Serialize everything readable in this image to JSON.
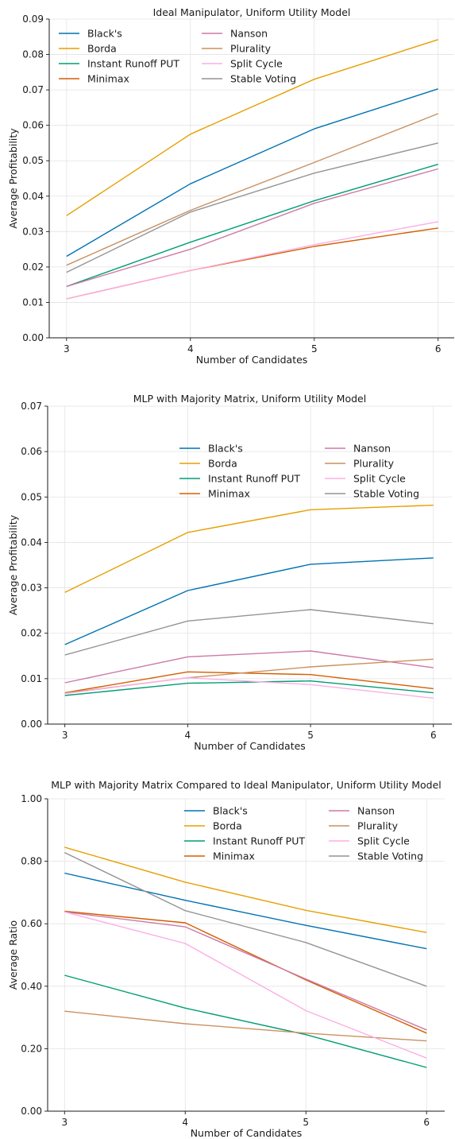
{
  "chart_data": [
    {
      "type": "line",
      "title": "Ideal Manipulator, Uniform Utility Model",
      "xlabel": "Number of Candidates",
      "ylabel": "Average Profitability",
      "x": [
        3,
        4,
        5,
        6
      ],
      "xlim": [
        2.86,
        6.13
      ],
      "ylim": [
        0,
        0.09
      ],
      "yticks": [
        0,
        0.01,
        0.02,
        0.03,
        0.04,
        0.05,
        0.06,
        0.07,
        0.08,
        0.09
      ],
      "ytick_labels": [
        "0.00",
        "0.01",
        "0.02",
        "0.03",
        "0.04",
        "0.05",
        "0.06",
        "0.07",
        "0.08",
        "0.09"
      ],
      "grid": true,
      "legend_position": "top-left",
      "series": [
        {
          "name": "Black's",
          "color": "#0072b2",
          "values": [
            0.023,
            0.0435,
            0.059,
            0.0703
          ]
        },
        {
          "name": "Borda",
          "color": "#e69f00",
          "values": [
            0.0345,
            0.0575,
            0.073,
            0.0842
          ]
        },
        {
          "name": "Instant Runoff PUT",
          "color": "#009e73",
          "values": [
            0.0145,
            0.027,
            0.0387,
            0.049
          ]
        },
        {
          "name": "Minimax",
          "color": "#d55e00",
          "values": [
            0.011,
            0.019,
            0.0258,
            0.031
          ]
        },
        {
          "name": "Nanson",
          "color": "#cc79a7",
          "values": [
            0.0145,
            0.025,
            0.038,
            0.0477
          ]
        },
        {
          "name": "Plurality",
          "color": "#ca9161",
          "values": [
            0.0205,
            0.036,
            0.0495,
            0.0633
          ]
        },
        {
          "name": "Split Cycle",
          "color": "#fbafe4",
          "values": [
            0.011,
            0.019,
            0.0263,
            0.0328
          ]
        },
        {
          "name": "Stable Voting",
          "color": "#949494",
          "values": [
            0.0185,
            0.0355,
            0.0465,
            0.055
          ]
        }
      ]
    },
    {
      "type": "line",
      "title": "MLP with Majority Matrix, Uniform Utility Model",
      "xlabel": "Number of Candidates",
      "ylabel": "Average Profitability",
      "x": [
        3,
        4,
        5,
        6
      ],
      "xlim": [
        2.86,
        6.15
      ],
      "ylim": [
        0,
        0.07
      ],
      "yticks": [
        0,
        0.01,
        0.02,
        0.03,
        0.04,
        0.05,
        0.06,
        0.07
      ],
      "ytick_labels": [
        "0.00",
        "0.01",
        "0.02",
        "0.03",
        "0.04",
        "0.05",
        "0.06",
        "0.07"
      ],
      "grid": true,
      "legend_position": "upper-right",
      "series": [
        {
          "name": "Black's",
          "color": "#0072b2",
          "values": [
            0.0175,
            0.0294,
            0.0352,
            0.0366
          ]
        },
        {
          "name": "Borda",
          "color": "#e69f00",
          "values": [
            0.029,
            0.0422,
            0.0472,
            0.0482
          ]
        },
        {
          "name": "Instant Runoff PUT",
          "color": "#009e73",
          "values": [
            0.0063,
            0.009,
            0.0095,
            0.0069
          ]
        },
        {
          "name": "Minimax",
          "color": "#d55e00",
          "values": [
            0.0069,
            0.0115,
            0.0109,
            0.0078
          ]
        },
        {
          "name": "Nanson",
          "color": "#cc79a7",
          "values": [
            0.0091,
            0.0148,
            0.0161,
            0.0124
          ]
        },
        {
          "name": "Plurality",
          "color": "#ca9161",
          "values": [
            0.0068,
            0.0102,
            0.0126,
            0.0143
          ]
        },
        {
          "name": "Split Cycle",
          "color": "#fbafe4",
          "values": [
            0.0067,
            0.0102,
            0.0087,
            0.0057
          ]
        },
        {
          "name": "Stable Voting",
          "color": "#949494",
          "values": [
            0.0152,
            0.0227,
            0.0252,
            0.0221
          ]
        }
      ]
    },
    {
      "type": "line",
      "title": "MLP with Majority Matrix Compared to Ideal Manipulator, Uniform Utility Model",
      "xlabel": "Number of Candidates",
      "ylabel": "Average Ratio",
      "x": [
        3,
        4,
        5,
        6
      ],
      "xlim": [
        2.86,
        6.15
      ],
      "ylim": [
        0,
        1.0
      ],
      "yticks": [
        0,
        0.2,
        0.4,
        0.6,
        0.8,
        1.0
      ],
      "ytick_labels": [
        "0.00",
        "0.20",
        "0.40",
        "0.60",
        "0.80",
        "1.00"
      ],
      "grid": true,
      "legend_position": "upper-right",
      "series": [
        {
          "name": "Black's",
          "color": "#0072b2",
          "values": [
            0.762,
            0.675,
            0.595,
            0.52
          ]
        },
        {
          "name": "Borda",
          "color": "#e69f00",
          "values": [
            0.845,
            0.733,
            0.643,
            0.572
          ]
        },
        {
          "name": "Instant Runoff PUT",
          "color": "#009e73",
          "values": [
            0.435,
            0.33,
            0.245,
            0.14
          ]
        },
        {
          "name": "Minimax",
          "color": "#d55e00",
          "values": [
            0.64,
            0.603,
            0.42,
            0.25
          ]
        },
        {
          "name": "Nanson",
          "color": "#cc79a7",
          "values": [
            0.638,
            0.59,
            0.423,
            0.26
          ]
        },
        {
          "name": "Plurality",
          "color": "#ca9161",
          "values": [
            0.32,
            0.28,
            0.25,
            0.225
          ]
        },
        {
          "name": "Split Cycle",
          "color": "#fbafe4",
          "values": [
            0.638,
            0.537,
            0.322,
            0.17
          ]
        },
        {
          "name": "Stable Voting",
          "color": "#949494",
          "values": [
            0.828,
            0.642,
            0.54,
            0.4
          ]
        }
      ]
    }
  ]
}
